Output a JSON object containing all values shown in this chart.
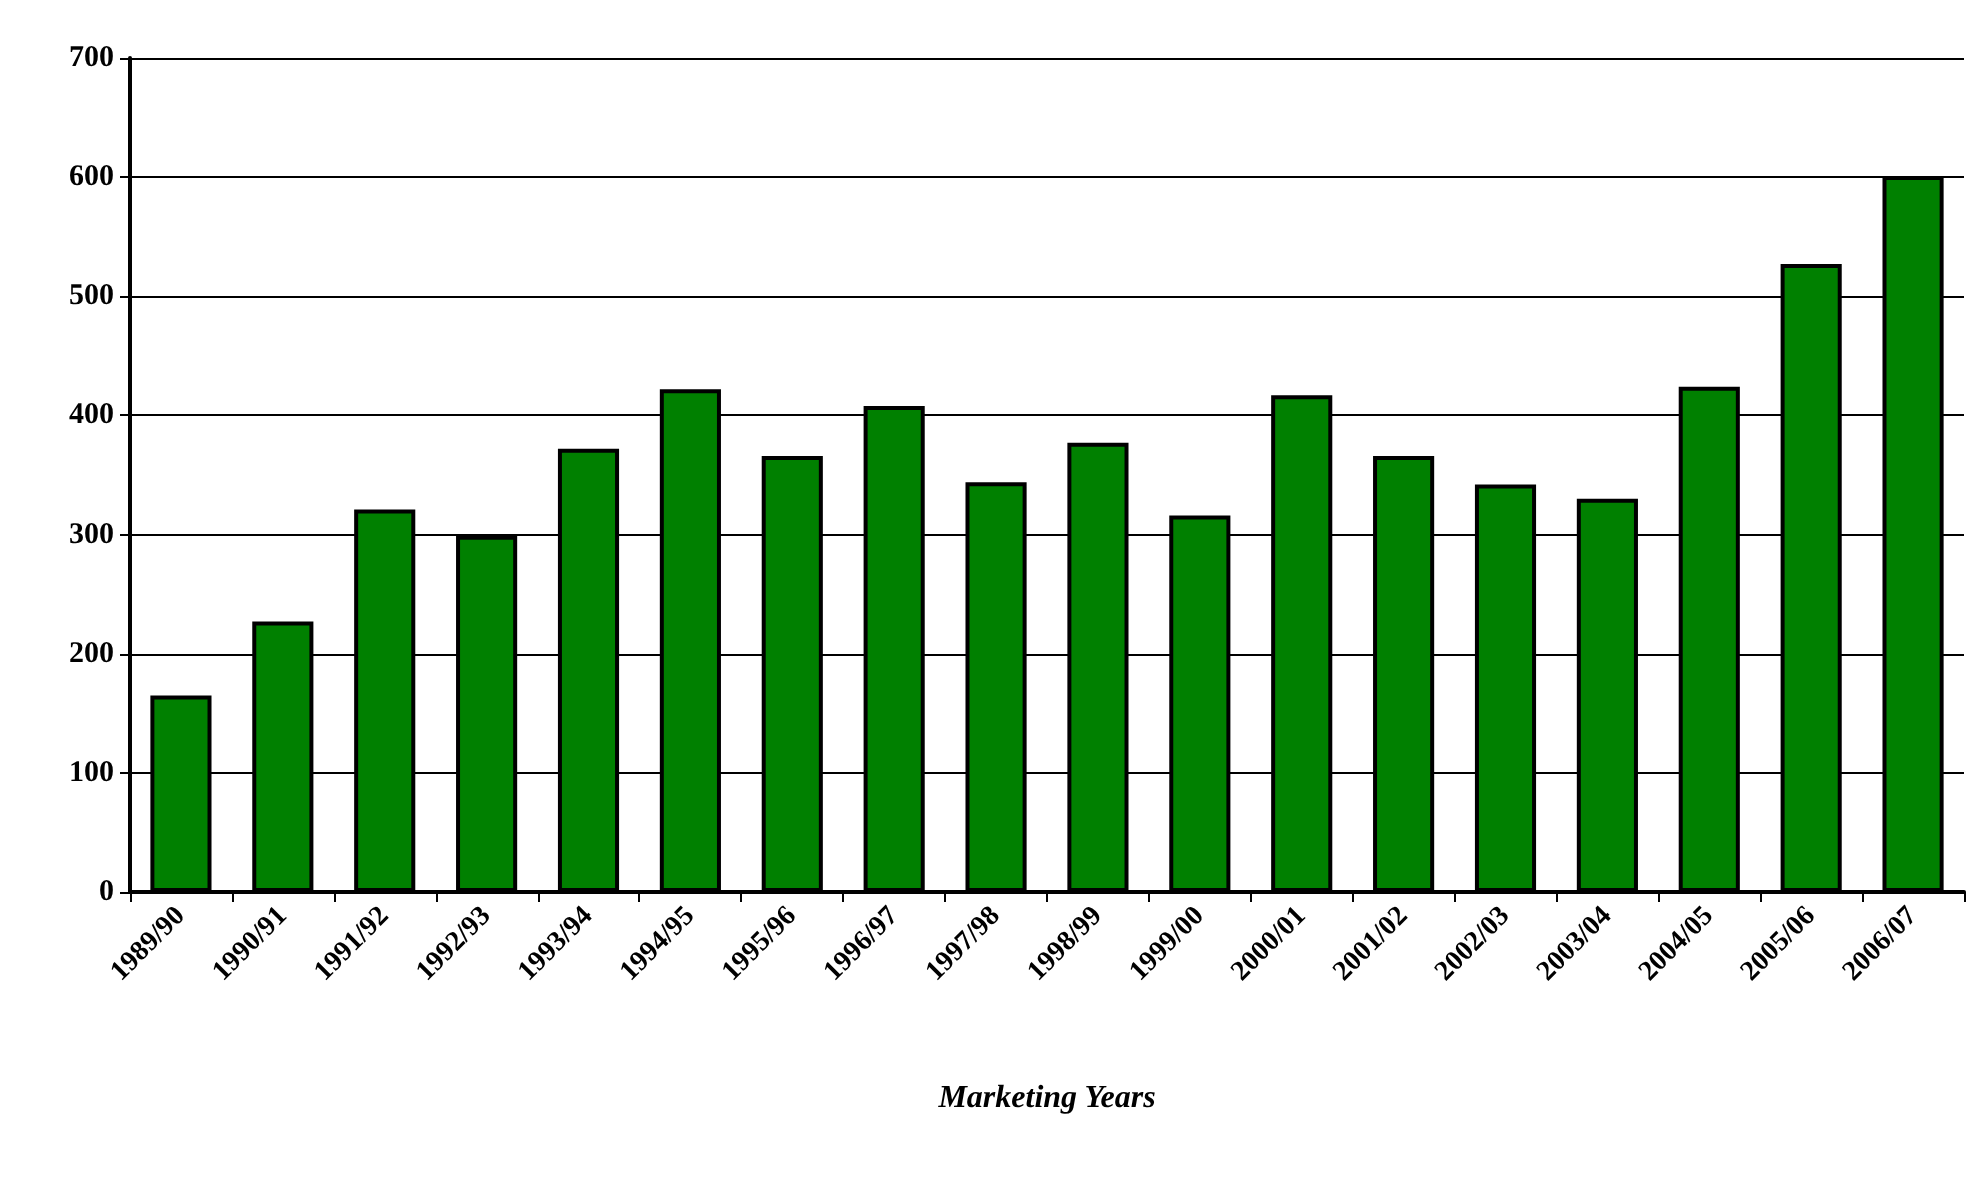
{
  "chart_data": {
    "type": "bar",
    "xlabel": "Marketing Years",
    "categories": [
      "1989/90",
      "1990/91",
      "1991/92",
      "1992/93",
      "1993/94",
      "1994/95",
      "1995/96",
      "1996/97",
      "1997/98",
      "1998/99",
      "1999/00",
      "2000/01",
      "2001/02",
      "2002/03",
      "2003/04",
      "2004/05",
      "2005/06",
      "2006/07"
    ],
    "values": [
      165,
      227,
      321,
      299,
      372,
      422,
      366,
      408,
      344,
      377,
      316,
      417,
      366,
      342,
      330,
      424,
      527,
      601
    ],
    "color": "#008000",
    "ylim": [
      0,
      700
    ],
    "yticks": [
      0,
      100,
      200,
      300,
      400,
      500,
      600,
      700
    ],
    "grid": "y"
  }
}
